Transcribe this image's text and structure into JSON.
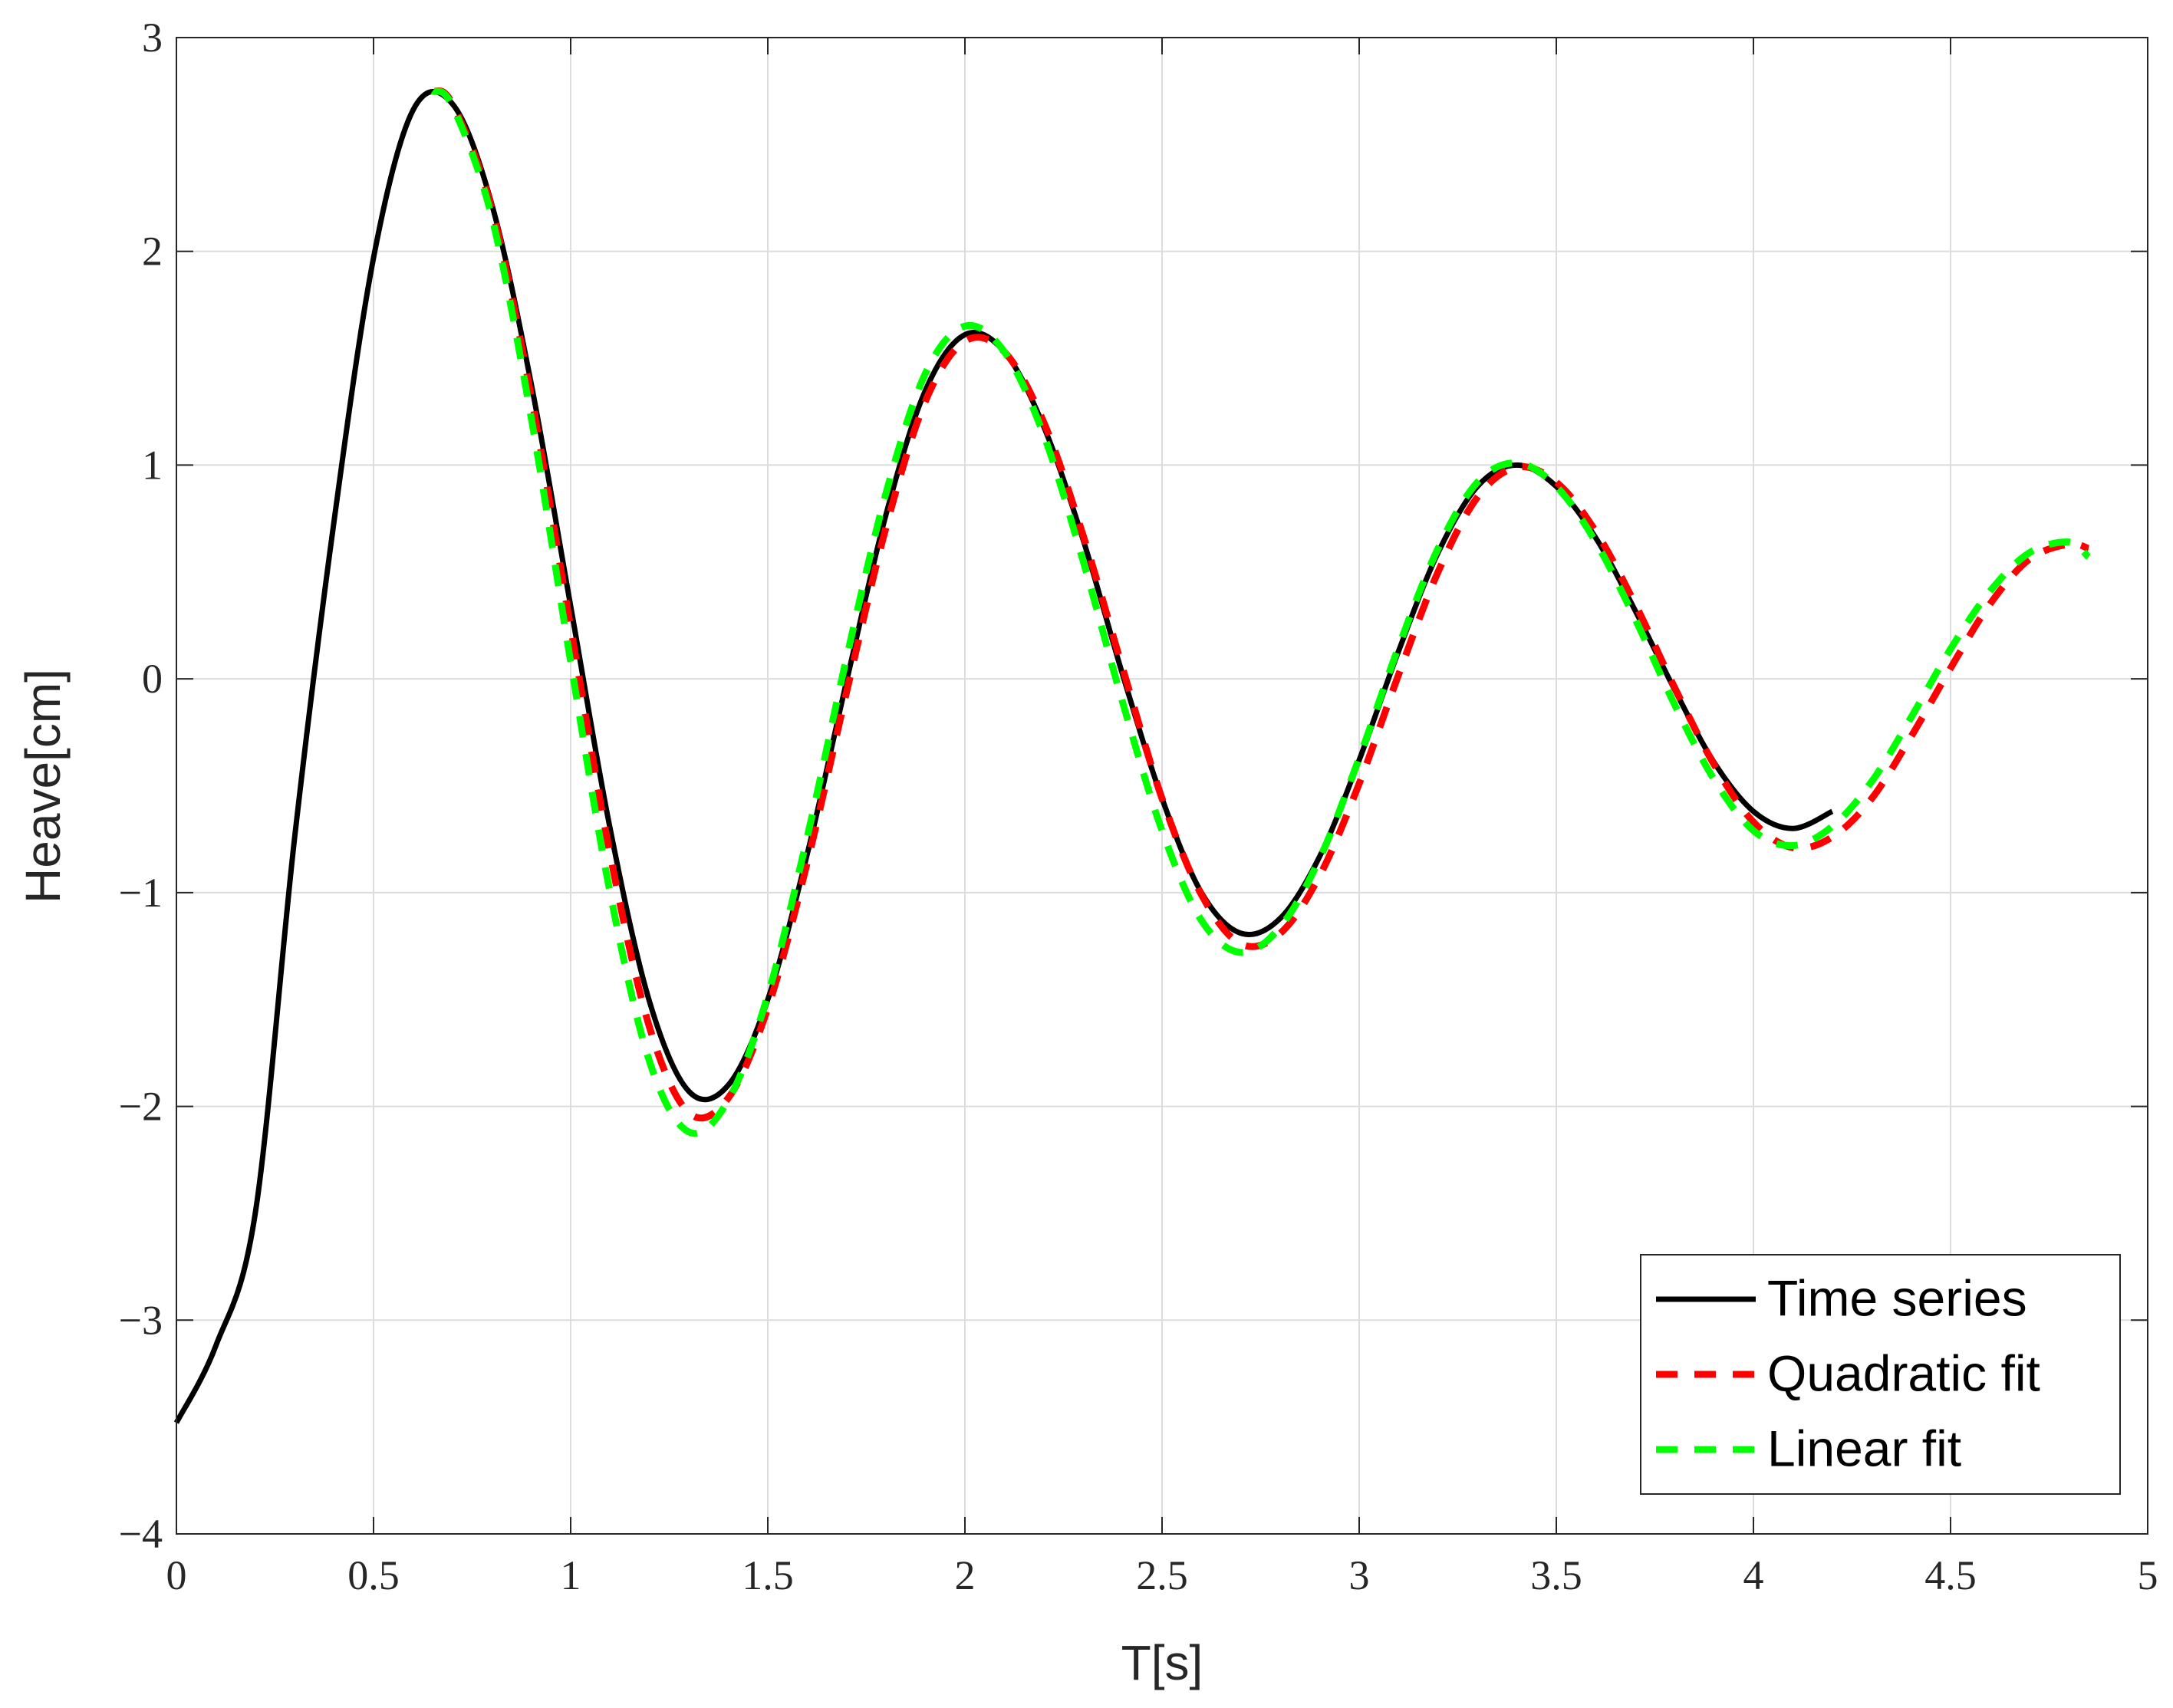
{
  "chart_data": {
    "type": "line",
    "xlabel": "T[s]",
    "ylabel": "Heave[cm]",
    "xlim": [
      0,
      5
    ],
    "ylim": [
      -4,
      3
    ],
    "xticks": [
      0,
      0.5,
      1,
      1.5,
      2,
      2.5,
      3,
      3.5,
      4,
      4.5,
      5
    ],
    "yticks": [
      {
        "value": -4,
        "label": "−4"
      },
      {
        "value": -3,
        "label": "−3"
      },
      {
        "value": -2,
        "label": "−2"
      },
      {
        "value": -1,
        "label": "−1"
      },
      0,
      1,
      2,
      3
    ],
    "grid": true,
    "legend": "southeast",
    "series": [
      {
        "name": "Time series",
        "color": "#000000",
        "linestyle": "solid",
        "x": [
          0,
          0.1,
          0.2,
          0.3,
          0.4,
          0.5,
          0.6,
          0.7,
          0.8,
          0.9,
          1.0,
          1.1,
          1.2,
          1.3,
          1.4,
          1.5,
          1.6,
          1.7,
          1.8,
          1.9,
          2.0,
          2.1,
          2.2,
          2.3,
          2.4,
          2.5,
          2.6,
          2.7,
          2.8,
          2.9,
          3.0,
          3.1,
          3.2,
          3.3,
          3.4,
          3.5,
          3.6,
          3.7,
          3.8,
          3.9,
          4.0,
          4.1,
          4.2
        ],
        "values": [
          -3.48,
          -3.12,
          -2.5,
          -0.74,
          0.74,
          1.97,
          2.66,
          2.69,
          2.22,
          1.38,
          0.34,
          -0.7,
          -1.51,
          -1.93,
          -1.9,
          -1.5,
          -0.82,
          -0.01,
          0.77,
          1.35,
          1.61,
          1.53,
          1.18,
          0.65,
          0.02,
          -0.56,
          -1.0,
          -1.19,
          -1.12,
          -0.83,
          -0.38,
          0.13,
          0.59,
          0.9,
          1.0,
          0.9,
          0.66,
          0.32,
          -0.05,
          -0.39,
          -0.62,
          -0.7,
          -0.62
        ]
      },
      {
        "name": "Quadratic fit",
        "color": "#ff0000",
        "linestyle": "dashed",
        "x": [
          0.65,
          0.7,
          0.8,
          0.9,
          1.0,
          1.1,
          1.2,
          1.3,
          1.4,
          1.5,
          1.6,
          1.7,
          1.8,
          1.9,
          2.0,
          2.1,
          2.2,
          2.3,
          2.4,
          2.5,
          2.6,
          2.7,
          2.8,
          2.9,
          3.0,
          3.1,
          3.2,
          3.3,
          3.4,
          3.5,
          3.6,
          3.7,
          3.8,
          3.9,
          4.0,
          4.1,
          4.2,
          4.3,
          4.4,
          4.5,
          4.6,
          4.7,
          4.8,
          4.85
        ],
        "values": [
          2.75,
          2.69,
          2.2,
          1.32,
          0.24,
          -0.82,
          -1.63,
          -2.03,
          -1.96,
          -1.54,
          -0.86,
          -0.06,
          0.71,
          1.3,
          1.58,
          1.53,
          1.2,
          0.67,
          0.05,
          -0.56,
          -1.01,
          -1.24,
          -1.19,
          -0.92,
          -0.49,
          0.02,
          0.5,
          0.85,
          0.99,
          0.92,
          0.69,
          0.35,
          -0.04,
          -0.4,
          -0.67,
          -0.79,
          -0.74,
          -0.56,
          -0.27,
          0.05,
          0.35,
          0.56,
          0.63,
          0.61
        ]
      },
      {
        "name": "Linear fit",
        "color": "#00ff00",
        "linestyle": "dashed",
        "x": [
          0.65,
          0.7,
          0.8,
          0.9,
          1.0,
          1.1,
          1.2,
          1.3,
          1.4,
          1.5,
          1.6,
          1.7,
          1.8,
          1.9,
          2.0,
          2.1,
          2.2,
          2.3,
          2.4,
          2.5,
          2.6,
          2.7,
          2.8,
          2.9,
          3.0,
          3.1,
          3.2,
          3.3,
          3.4,
          3.5,
          3.6,
          3.7,
          3.8,
          3.9,
          4.0,
          4.1,
          4.2,
          4.3,
          4.4,
          4.5,
          4.6,
          4.7,
          4.8,
          4.85
        ],
        "values": [
          2.75,
          2.68,
          2.16,
          1.22,
          0.08,
          -1.0,
          -1.79,
          -2.12,
          -1.97,
          -1.48,
          -0.74,
          0.1,
          0.87,
          1.43,
          1.65,
          1.53,
          1.14,
          0.55,
          -0.11,
          -0.71,
          -1.13,
          -1.28,
          -1.16,
          -0.84,
          -0.37,
          0.15,
          0.61,
          0.92,
          1.01,
          0.9,
          0.64,
          0.28,
          -0.12,
          -0.47,
          -0.71,
          -0.78,
          -0.69,
          -0.48,
          -0.18,
          0.14,
          0.41,
          0.59,
          0.64,
          0.57
        ]
      }
    ]
  }
}
